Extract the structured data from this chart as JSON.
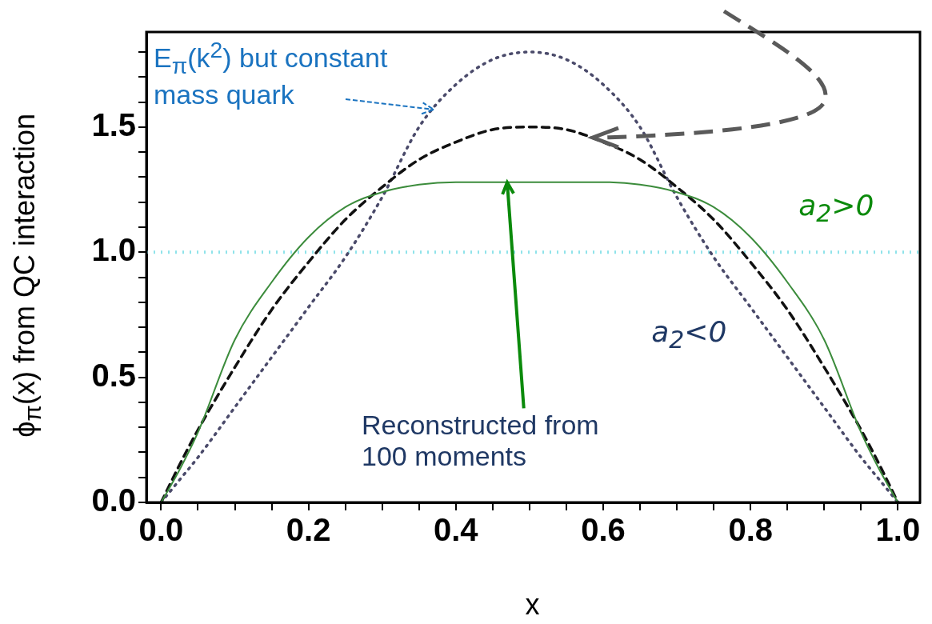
{
  "chart_data": {
    "type": "line",
    "xlabel": "x",
    "ylabel": "ϕ$_{π}$(x) from QC interaction",
    "x": [
      0,
      0.025,
      0.05,
      0.1,
      0.15,
      0.2,
      0.25,
      0.3,
      0.35,
      0.4,
      0.45,
      0.5,
      0.55,
      0.6,
      0.65,
      0.7,
      0.75,
      0.8,
      0.85,
      0.9,
      0.95,
      0.975,
      1
    ],
    "series": [
      {
        "name": "a$_{2}$>0",
        "color": "#3c8c3c",
        "line_style": "solid",
        "values": [
          0,
          0.13,
          0.28,
          0.65,
          0.88,
          1.06,
          1.18,
          1.24,
          1.27,
          1.28,
          1.28,
          1.28,
          1.28,
          1.28,
          1.27,
          1.24,
          1.18,
          1.06,
          0.88,
          0.65,
          0.28,
          0.13,
          0
        ]
      },
      {
        "color": "#111111",
        "line_style": "dashed",
        "values": [
          0,
          0.15,
          0.29,
          0.54,
          0.77,
          0.96,
          1.13,
          1.26,
          1.37,
          1.44,
          1.49,
          1.5,
          1.49,
          1.44,
          1.37,
          1.26,
          1.13,
          0.96,
          0.77,
          0.54,
          0.29,
          0.15,
          0
        ]
      },
      {
        "name": "a$_{2}$<0",
        "color": "#4a4a6a",
        "line_style": "dotted",
        "values": [
          0,
          0.09,
          0.18,
          0.38,
          0.58,
          0.78,
          0.98,
          1.22,
          1.5,
          1.67,
          1.77,
          1.8,
          1.77,
          1.67,
          1.5,
          1.22,
          0.98,
          0.78,
          0.58,
          0.38,
          0.18,
          0.09,
          0
        ]
      }
    ],
    "ref_lines": [
      {
        "axis": "y",
        "value": 1.0,
        "color": "#8fe3ea",
        "line_style": "dotted"
      }
    ],
    "annotations": [
      {
        "text": "E$_{π}$(k$^{2}$) but constant mass quark",
        "x": 0.37,
        "y": 1.57
      },
      {
        "text": "Reconstructed from 100 moments",
        "x": 0.47,
        "y": 1.28
      }
    ],
    "xlim": [
      -0.02,
      1.03
    ],
    "ylim": [
      0,
      1.88
    ],
    "xticks": [
      {
        "value": 0,
        "label": "0.0"
      },
      {
        "value": 0.05,
        "label": null
      },
      {
        "value": 0.1,
        "label": null
      },
      {
        "value": 0.15,
        "label": null
      },
      {
        "value": 0.2,
        "label": "0.2"
      },
      {
        "value": 0.25,
        "label": null
      },
      {
        "value": 0.3,
        "label": null
      },
      {
        "value": 0.35,
        "label": null
      },
      {
        "value": 0.4,
        "label": "0.4"
      },
      {
        "value": 0.45,
        "label": null
      },
      {
        "value": 0.5,
        "label": null
      },
      {
        "value": 0.55,
        "label": null
      },
      {
        "value": 0.6,
        "label": "0.6"
      },
      {
        "value": 0.65,
        "label": null
      },
      {
        "value": 0.7,
        "label": null
      },
      {
        "value": 0.75,
        "label": null
      },
      {
        "value": 0.8,
        "label": "0.8"
      },
      {
        "value": 0.85,
        "label": null
      },
      {
        "value": 0.9,
        "label": null
      },
      {
        "value": 0.95,
        "label": null
      },
      {
        "value": 1,
        "label": "1.0"
      }
    ],
    "yticks": [
      {
        "value": 0,
        "label": "0.0"
      },
      {
        "value": 0.1,
        "label": null
      },
      {
        "value": 0.2,
        "label": null
      },
      {
        "value": 0.3,
        "label": null
      },
      {
        "value": 0.4,
        "label": null
      },
      {
        "value": 0.5,
        "label": "0.5"
      },
      {
        "value": 0.6,
        "label": null
      },
      {
        "value": 0.7,
        "label": null
      },
      {
        "value": 0.8,
        "label": null
      },
      {
        "value": 0.9,
        "label": null
      },
      {
        "value": 1,
        "label": "1.0"
      },
      {
        "value": 1.1,
        "label": null
      },
      {
        "value": 1.2,
        "label": null
      },
      {
        "value": 1.3,
        "label": null
      },
      {
        "value": 1.4,
        "label": null
      },
      {
        "value": 1.5,
        "label": "1.5"
      },
      {
        "value": 1.6,
        "label": null
      },
      {
        "value": 1.7,
        "label": null
      },
      {
        "value": 1.8,
        "label": null
      }
    ],
    "grid": false,
    "legend": false,
    "marker": "none"
  }
}
